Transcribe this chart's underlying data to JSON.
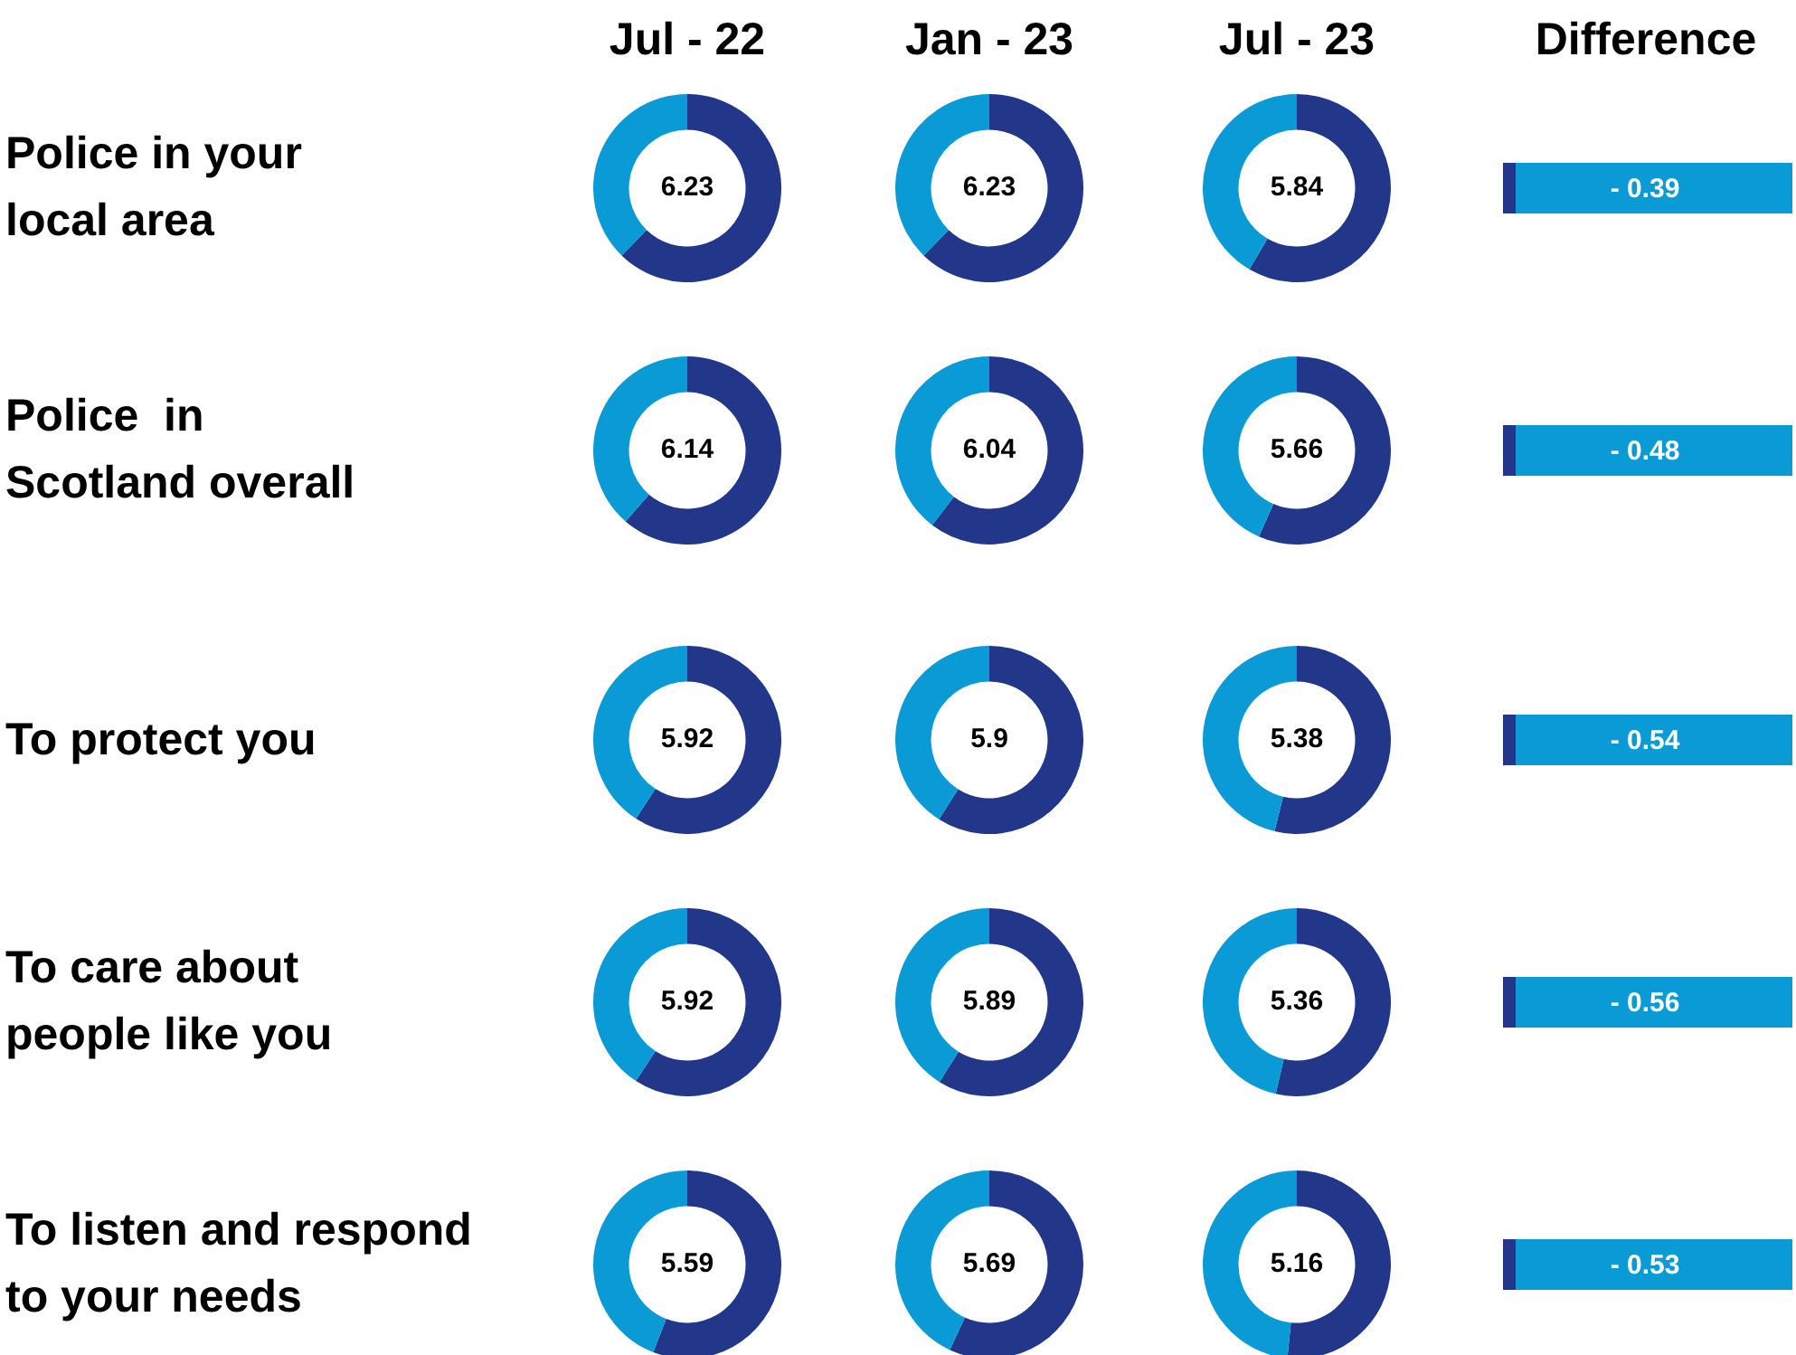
{
  "chart_data": [
    {
      "type": "other",
      "annotations": [
        "Jul - 22",
        "Jan - 23",
        "Jul - 23",
        "Police in your\nlocal area",
        "Police  in\nScotland overall",
        "To protect you",
        "To care about\npeople like you",
        "To listen and respond\nto your needs"
      ]
    },
    {
      "type": "donut",
      "categories": [
        null,
        null
      ],
      "values": [
        6.23,
        3.77
      ],
      "colors": [
        "#22378a",
        "#0a9bd7"
      ],
      "value_labels": [
        "6.23",
        null
      ]
    },
    {
      "type": "donut",
      "categories": [
        null,
        null
      ],
      "values": [
        6.23,
        3.77
      ],
      "colors": [
        "#22378a",
        "#0a9bd7"
      ],
      "value_labels": [
        "6.23",
        null
      ]
    },
    {
      "type": "donut",
      "categories": [
        null,
        null
      ],
      "values": [
        5.84,
        4.16
      ],
      "colors": [
        "#22378a",
        "#0a9bd7"
      ],
      "value_labels": [
        "5.84",
        null
      ]
    },
    {
      "type": "donut",
      "categories": [
        null,
        null
      ],
      "values": [
        6.14,
        3.86
      ],
      "colors": [
        "#22378a",
        "#0a9bd7"
      ],
      "value_labels": [
        "6.14",
        null
      ]
    },
    {
      "type": "donut",
      "categories": [
        null,
        null
      ],
      "values": [
        6.04,
        3.96
      ],
      "colors": [
        "#22378a",
        "#0a9bd7"
      ],
      "value_labels": [
        "6.04",
        null
      ]
    },
    {
      "type": "donut",
      "categories": [
        null,
        null
      ],
      "values": [
        5.66,
        4.34
      ],
      "colors": [
        "#22378a",
        "#0a9bd7"
      ],
      "value_labels": [
        "5.66",
        null
      ]
    },
    {
      "type": "donut",
      "categories": [
        null,
        null
      ],
      "values": [
        5.92,
        4.08
      ],
      "colors": [
        "#22378a",
        "#0a9bd7"
      ],
      "value_labels": [
        "5.92",
        null
      ]
    },
    {
      "type": "donut",
      "categories": [
        null,
        null
      ],
      "values": [
        5.9,
        4.1
      ],
      "colors": [
        "#22378a",
        "#0a9bd7"
      ],
      "value_labels": [
        "5.9",
        null
      ]
    },
    {
      "type": "donut",
      "categories": [
        null,
        null
      ],
      "values": [
        5.38,
        4.62
      ],
      "colors": [
        "#22378a",
        "#0a9bd7"
      ],
      "value_labels": [
        "5.38",
        null
      ]
    },
    {
      "type": "donut",
      "categories": [
        null,
        null
      ],
      "values": [
        5.92,
        4.08
      ],
      "colors": [
        "#22378a",
        "#0a9bd7"
      ],
      "value_labels": [
        "5.92",
        null
      ]
    },
    {
      "type": "donut",
      "categories": [
        null,
        null
      ],
      "values": [
        5.89,
        4.11
      ],
      "colors": [
        "#22378a",
        "#0a9bd7"
      ],
      "value_labels": [
        "5.89",
        null
      ]
    },
    {
      "type": "donut",
      "categories": [
        null,
        null
      ],
      "values": [
        5.36,
        4.64
      ],
      "colors": [
        "#22378a",
        "#0a9bd7"
      ],
      "value_labels": [
        "5.36",
        null
      ]
    },
    {
      "type": "donut",
      "categories": [
        null,
        null
      ],
      "values": [
        5.59,
        4.41
      ],
      "colors": [
        "#22378a",
        "#0a9bd7"
      ],
      "value_labels": [
        "5.59",
        null
      ]
    },
    {
      "type": "donut",
      "categories": [
        null,
        null
      ],
      "values": [
        5.69,
        4.31
      ],
      "colors": [
        "#22378a",
        "#0a9bd7"
      ],
      "value_labels": [
        "5.69",
        null
      ]
    },
    {
      "type": "donut",
      "categories": [
        null,
        null
      ],
      "values": [
        5.16,
        4.84
      ],
      "colors": [
        "#22378a",
        "#0a9bd7"
      ],
      "value_labels": [
        "5.16",
        null
      ]
    },
    {
      "type": "other",
      "title": "Difference",
      "annotations": [
        "- 0.39",
        "- 0.48",
        "- 0.54",
        "- 0.56",
        "- 0.53"
      ]
    }
  ]
}
